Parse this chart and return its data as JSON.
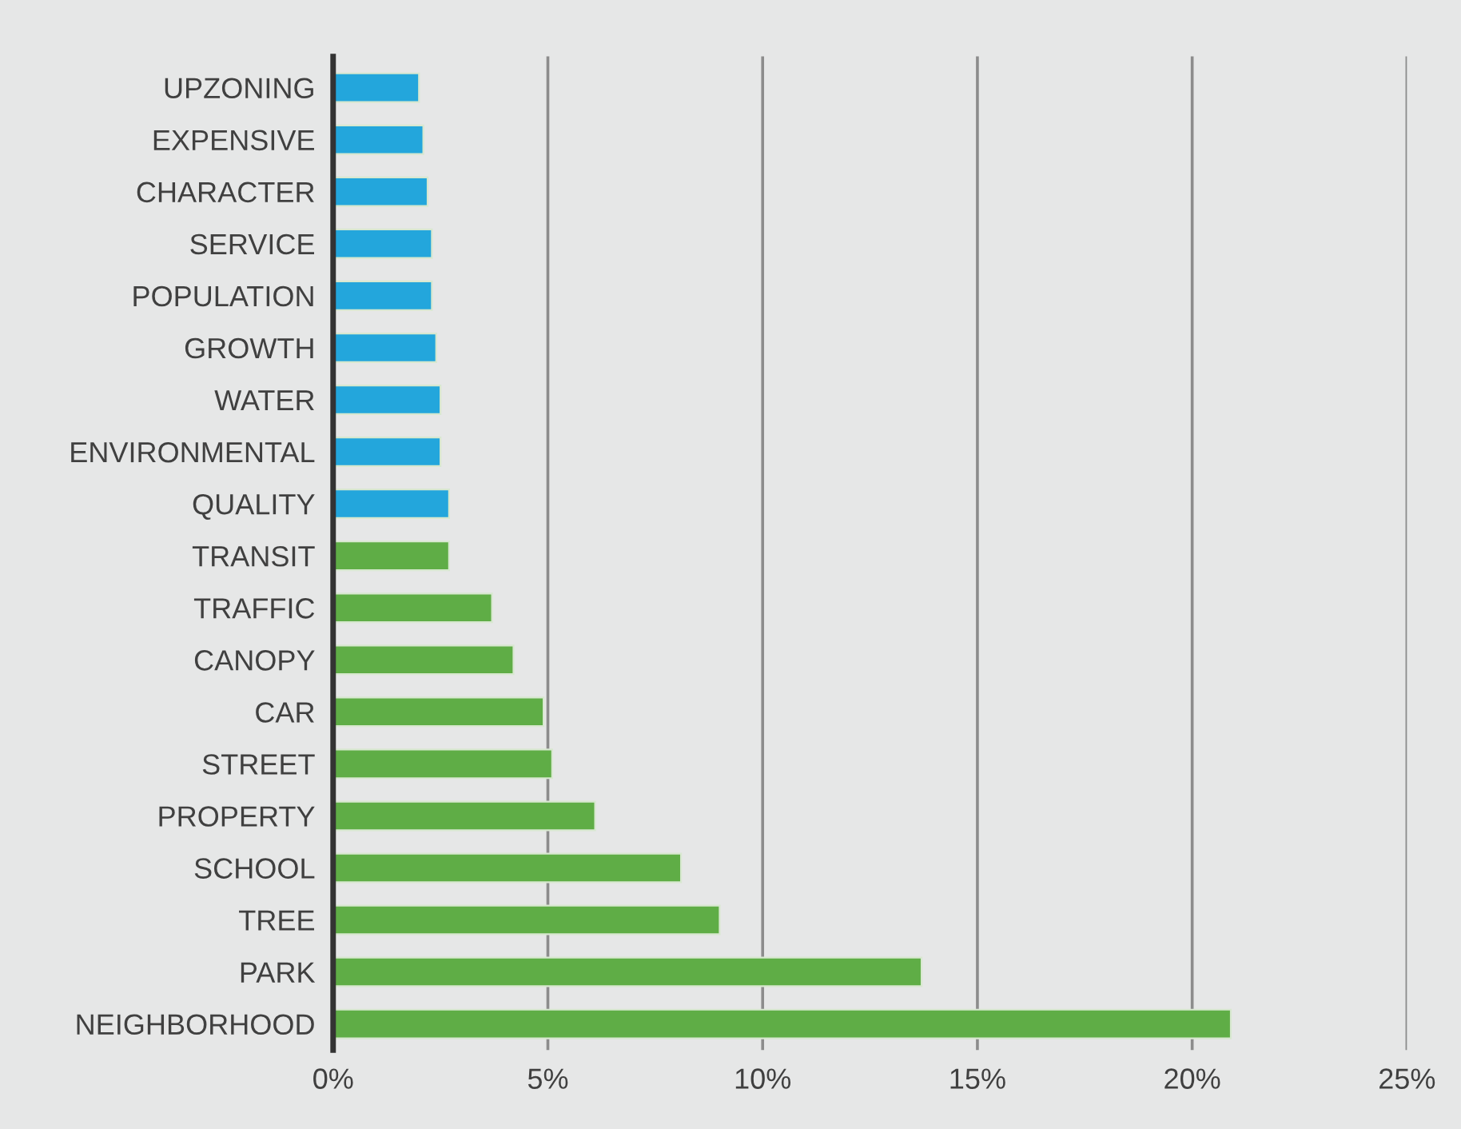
{
  "chart_data": {
    "type": "bar",
    "orientation": "horizontal",
    "categories": [
      "UPZONING",
      "EXPENSIVE",
      "CHARACTER",
      "SERVICE",
      "POPULATION",
      "GROWTH",
      "WATER",
      "ENVIRONMENTAL",
      "QUALITY",
      "TRANSIT",
      "TRAFFIC",
      "CANOPY",
      "CAR",
      "STREET",
      "PROPERTY",
      "SCHOOL",
      "TREE",
      "PARK",
      "NEIGHBORHOOD"
    ],
    "values": [
      2.0,
      2.1,
      2.2,
      2.3,
      2.3,
      2.4,
      2.5,
      2.5,
      2.7,
      2.7,
      3.7,
      4.2,
      4.9,
      5.1,
      6.1,
      8.1,
      9.0,
      13.7,
      20.9
    ],
    "colors": [
      "#23a6dc",
      "#23a6dc",
      "#23a6dc",
      "#23a6dc",
      "#23a6dc",
      "#23a6dc",
      "#23a6dc",
      "#23a6dc",
      "#23a6dc",
      "#5fad46",
      "#5fad46",
      "#5fad46",
      "#5fad46",
      "#5fad46",
      "#5fad46",
      "#5fad46",
      "#5fad46",
      "#5fad46",
      "#5fad46"
    ],
    "xlim": [
      0,
      25
    ],
    "xticks": [
      {
        "value": 0,
        "label": "0%"
      },
      {
        "value": 5,
        "label": "5%"
      },
      {
        "value": 10,
        "label": "10%"
      },
      {
        "value": 15,
        "label": "15%"
      },
      {
        "value": 20,
        "label": "20%"
      },
      {
        "value": 25,
        "label": "25%"
      }
    ],
    "grid": "x",
    "legend": false
  }
}
